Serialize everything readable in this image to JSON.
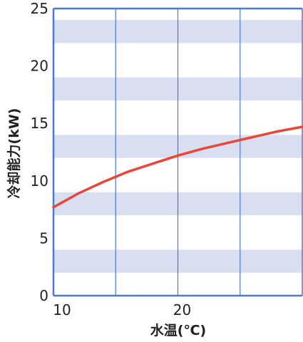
{
  "chart_data": {
    "type": "line",
    "xlabel": "水温(℃)",
    "ylabel": "冷却能力(kW)",
    "xlim": [
      10,
      30
    ],
    "ylim": [
      0,
      25
    ],
    "x_ticks": [
      {
        "value": 10,
        "label": "10"
      },
      {
        "value": 20,
        "label": "20"
      }
    ],
    "y_ticks": [
      {
        "value": 0,
        "label": "0"
      },
      {
        "value": 5,
        "label": "5"
      },
      {
        "value": 10,
        "label": "10"
      },
      {
        "value": 15,
        "label": "15"
      },
      {
        "value": 20,
        "label": "20"
      },
      {
        "value": 25,
        "label": "25"
      }
    ],
    "vertical_gridlines_x": [
      15,
      20,
      25
    ],
    "band_color": "#d9def0",
    "axis_color": "#4a7ad0",
    "series": [
      {
        "color": "#e8473a",
        "x": [
          10,
          12,
          14,
          16,
          18,
          20,
          22,
          24,
          26,
          28,
          30
        ],
        "y": [
          7.7,
          8.9,
          9.9,
          10.8,
          11.5,
          12.2,
          12.8,
          13.3,
          13.8,
          14.3,
          14.7
        ]
      }
    ]
  }
}
